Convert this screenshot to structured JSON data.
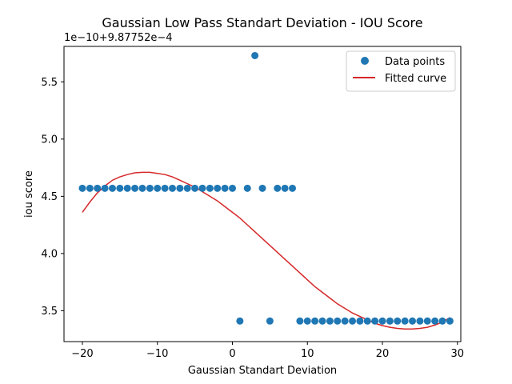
{
  "chart_data": {
    "type": "scatter",
    "title": "Gaussian Low Pass Standart Deviation - IOU Score",
    "xlabel": "Gaussian  Standart Deviation",
    "ylabel": "iou score",
    "y_offset_text": "1e−10+9.87752e−4",
    "xlim": [
      -22.45,
      30.45
    ],
    "ylim": [
      3.23,
      5.81
    ],
    "x_ticks": [
      -20,
      -10,
      0,
      10,
      20,
      30
    ],
    "x_tick_labels": [
      "−20",
      "−10",
      "0",
      "10",
      "20",
      "30"
    ],
    "y_ticks": [
      3.5,
      4.0,
      4.5,
      5.0,
      5.5
    ],
    "y_tick_labels": [
      "3.5",
      "4.0",
      "4.5",
      "5.0",
      "5.5"
    ],
    "grid": false,
    "legend_position": "top-right",
    "series": [
      {
        "name": "Data points",
        "kind": "scatter",
        "color": "#1f77b4",
        "x": [
          -20,
          -19,
          -18,
          -17,
          -16,
          -15,
          -14,
          -13,
          -12,
          -11,
          -10,
          -9,
          -8,
          -7,
          -6,
          -5,
          -4,
          -3,
          -2,
          -1,
          0,
          1,
          2,
          3,
          4,
          5,
          6,
          7,
          8,
          9,
          10,
          11,
          12,
          13,
          14,
          15,
          16,
          17,
          18,
          19,
          20,
          21,
          22,
          23,
          24,
          25,
          26,
          27,
          28,
          29
        ],
        "y": [
          4.57,
          4.57,
          4.57,
          4.57,
          4.57,
          4.57,
          4.57,
          4.57,
          4.57,
          4.57,
          4.57,
          4.57,
          4.57,
          4.57,
          4.57,
          4.57,
          4.57,
          4.57,
          4.57,
          4.57,
          4.57,
          3.41,
          4.57,
          5.73,
          4.57,
          3.41,
          4.57,
          4.57,
          4.57,
          3.41,
          3.41,
          3.41,
          3.41,
          3.41,
          3.41,
          3.41,
          3.41,
          3.41,
          3.41,
          3.41,
          3.41,
          3.41,
          3.41,
          3.41,
          3.41,
          3.41,
          3.41,
          3.41,
          3.41,
          3.41
        ]
      },
      {
        "name": "Fitted curve",
        "kind": "line",
        "color": "#d62728",
        "x": [
          -20,
          -19,
          -18,
          -17,
          -16,
          -15,
          -14,
          -13,
          -12,
          -11,
          -10,
          -9,
          -8,
          -7,
          -6,
          -5,
          -4,
          -3,
          -2,
          -1,
          0,
          1,
          2,
          3,
          4,
          5,
          6,
          7,
          8,
          9,
          10,
          11,
          12,
          13,
          14,
          15,
          16,
          17,
          18,
          19,
          20,
          21,
          22,
          23,
          24,
          25,
          26,
          27,
          28,
          29
        ],
        "y": [
          4.36,
          4.45,
          4.53,
          4.59,
          4.64,
          4.67,
          4.69,
          4.705,
          4.71,
          4.71,
          4.7,
          4.69,
          4.67,
          4.64,
          4.61,
          4.58,
          4.54,
          4.5,
          4.46,
          4.41,
          4.36,
          4.31,
          4.25,
          4.19,
          4.13,
          4.07,
          4.01,
          3.95,
          3.89,
          3.83,
          3.77,
          3.71,
          3.66,
          3.61,
          3.56,
          3.52,
          3.48,
          3.45,
          3.42,
          3.39,
          3.37,
          3.355,
          3.345,
          3.34,
          3.34,
          3.345,
          3.355,
          3.375,
          3.4,
          3.44
        ]
      }
    ]
  }
}
